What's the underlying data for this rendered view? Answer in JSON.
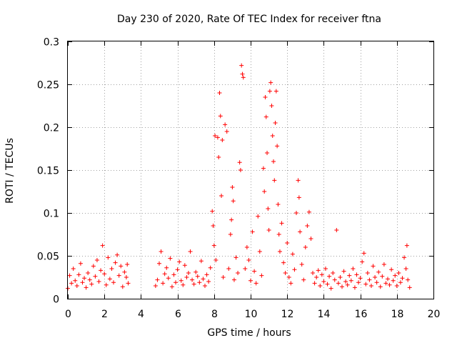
{
  "chart_data": {
    "type": "scatter",
    "title": "Day 230 of 2020, Rate Of TEC Index for receiver ftna",
    "xlabel": "GPS time / hours",
    "ylabel": "ROTI / TECUs",
    "xlim": [
      0,
      20
    ],
    "ylim": [
      0,
      0.3
    ],
    "xticks": [
      "0",
      "2",
      "4",
      "6",
      "8",
      "10",
      "12",
      "14",
      "16",
      "18",
      "20"
    ],
    "yticks": [
      "0",
      "0.05",
      "0.1",
      "0.15",
      "0.2",
      "0.25",
      "0.3"
    ],
    "grid": true,
    "marker": "+",
    "color": "#ff0000",
    "series": [
      {
        "name": "ROTI",
        "points": [
          [
            0.0,
            0.012
          ],
          [
            0.1,
            0.027
          ],
          [
            0.2,
            0.018
          ],
          [
            0.3,
            0.035
          ],
          [
            0.4,
            0.021
          ],
          [
            0.5,
            0.015
          ],
          [
            0.6,
            0.028
          ],
          [
            0.7,
            0.041
          ],
          [
            0.8,
            0.019
          ],
          [
            0.9,
            0.024
          ],
          [
            1.0,
            0.013
          ],
          [
            1.1,
            0.03
          ],
          [
            1.2,
            0.022
          ],
          [
            1.3,
            0.017
          ],
          [
            1.4,
            0.038
          ],
          [
            1.5,
            0.026
          ],
          [
            1.6,
            0.045
          ],
          [
            1.7,
            0.02
          ],
          [
            1.8,
            0.033
          ],
          [
            1.9,
            0.062
          ],
          [
            2.0,
            0.029
          ],
          [
            2.1,
            0.016
          ],
          [
            2.2,
            0.048
          ],
          [
            2.3,
            0.023
          ],
          [
            2.4,
            0.035
          ],
          [
            2.5,
            0.019
          ],
          [
            2.6,
            0.042
          ],
          [
            2.7,
            0.051
          ],
          [
            2.8,
            0.027
          ],
          [
            2.9,
            0.038
          ],
          [
            3.0,
            0.014
          ],
          [
            3.1,
            0.031
          ],
          [
            3.2,
            0.025
          ],
          [
            3.3,
            0.018
          ],
          [
            3.25,
            0.04
          ],
          [
            4.8,
            0.015
          ],
          [
            4.9,
            0.022
          ],
          [
            5.0,
            0.041
          ],
          [
            5.1,
            0.055
          ],
          [
            5.2,
            0.018
          ],
          [
            5.3,
            0.029
          ],
          [
            5.4,
            0.036
          ],
          [
            5.5,
            0.024
          ],
          [
            5.6,
            0.047
          ],
          [
            5.7,
            0.014
          ],
          [
            5.8,
            0.028
          ],
          [
            5.9,
            0.019
          ],
          [
            6.0,
            0.034
          ],
          [
            6.1,
            0.043
          ],
          [
            6.2,
            0.021
          ],
          [
            6.3,
            0.016
          ],
          [
            6.4,
            0.039
          ],
          [
            6.5,
            0.025
          ],
          [
            6.6,
            0.03
          ],
          [
            6.7,
            0.055
          ],
          [
            6.8,
            0.022
          ],
          [
            6.9,
            0.017
          ],
          [
            7.0,
            0.031
          ],
          [
            7.1,
            0.026
          ],
          [
            7.2,
            0.019
          ],
          [
            7.3,
            0.044
          ],
          [
            7.4,
            0.023
          ],
          [
            7.5,
            0.015
          ],
          [
            7.6,
            0.028
          ],
          [
            7.7,
            0.02
          ],
          [
            7.8,
            0.036
          ],
          [
            7.9,
            0.102
          ],
          [
            7.95,
            0.085
          ],
          [
            8.0,
            0.062
          ],
          [
            8.05,
            0.19
          ],
          [
            8.1,
            0.045
          ],
          [
            8.2,
            0.188
          ],
          [
            8.25,
            0.165
          ],
          [
            8.3,
            0.24
          ],
          [
            8.35,
            0.213
          ],
          [
            8.4,
            0.12
          ],
          [
            8.45,
            0.185
          ],
          [
            8.5,
            0.025
          ],
          [
            8.6,
            0.203
          ],
          [
            8.7,
            0.195
          ],
          [
            8.8,
            0.035
          ],
          [
            8.9,
            0.075
          ],
          [
            8.95,
            0.092
          ],
          [
            9.0,
            0.13
          ],
          [
            9.05,
            0.114
          ],
          [
            9.1,
            0.022
          ],
          [
            9.2,
            0.048
          ],
          [
            9.3,
            0.03
          ],
          [
            9.4,
            0.159
          ],
          [
            9.45,
            0.15
          ],
          [
            9.5,
            0.272
          ],
          [
            9.55,
            0.262
          ],
          [
            9.6,
            0.258
          ],
          [
            9.7,
            0.035
          ],
          [
            9.8,
            0.06
          ],
          [
            9.9,
            0.045
          ],
          [
            10.0,
            0.021
          ],
          [
            10.1,
            0.078
          ],
          [
            10.2,
            0.032
          ],
          [
            10.3,
            0.018
          ],
          [
            10.4,
            0.096
          ],
          [
            10.5,
            0.055
          ],
          [
            10.6,
            0.027
          ],
          [
            10.7,
            0.152
          ],
          [
            10.75,
            0.125
          ],
          [
            10.8,
            0.235
          ],
          [
            10.85,
            0.212
          ],
          [
            10.9,
            0.17
          ],
          [
            10.95,
            0.105
          ],
          [
            11.0,
            0.08
          ],
          [
            11.05,
            0.242
          ],
          [
            11.1,
            0.252
          ],
          [
            11.15,
            0.225
          ],
          [
            11.2,
            0.19
          ],
          [
            11.25,
            0.16
          ],
          [
            11.3,
            0.138
          ],
          [
            11.35,
            0.205
          ],
          [
            11.4,
            0.242
          ],
          [
            11.45,
            0.178
          ],
          [
            11.5,
            0.11
          ],
          [
            11.55,
            0.075
          ],
          [
            11.6,
            0.055
          ],
          [
            11.7,
            0.088
          ],
          [
            11.8,
            0.042
          ],
          [
            11.9,
            0.03
          ],
          [
            12.0,
            0.065
          ],
          [
            12.1,
            0.025
          ],
          [
            12.2,
            0.018
          ],
          [
            12.3,
            0.052
          ],
          [
            12.4,
            0.034
          ],
          [
            12.5,
            0.1
          ],
          [
            12.6,
            0.138
          ],
          [
            12.65,
            0.118
          ],
          [
            12.7,
            0.078
          ],
          [
            12.8,
            0.04
          ],
          [
            12.9,
            0.022
          ],
          [
            13.0,
            0.06
          ],
          [
            13.1,
            0.085
          ],
          [
            13.2,
            0.101
          ],
          [
            13.3,
            0.07
          ],
          [
            13.4,
            0.03
          ],
          [
            13.5,
            0.018
          ],
          [
            13.6,
            0.025
          ],
          [
            13.7,
            0.033
          ],
          [
            13.8,
            0.015
          ],
          [
            13.9,
            0.028
          ],
          [
            14.0,
            0.02
          ],
          [
            14.1,
            0.035
          ],
          [
            14.2,
            0.017
          ],
          [
            14.3,
            0.026
          ],
          [
            14.4,
            0.012
          ],
          [
            14.5,
            0.03
          ],
          [
            14.6,
            0.022
          ],
          [
            14.7,
            0.08
          ],
          [
            14.8,
            0.018
          ],
          [
            14.9,
            0.025
          ],
          [
            15.0,
            0.014
          ],
          [
            15.1,
            0.032
          ],
          [
            15.2,
            0.02
          ],
          [
            15.3,
            0.016
          ],
          [
            15.4,
            0.027
          ],
          [
            15.5,
            0.021
          ],
          [
            15.6,
            0.035
          ],
          [
            15.7,
            0.013
          ],
          [
            15.8,
            0.028
          ],
          [
            15.9,
            0.019
          ],
          [
            16.0,
            0.024
          ],
          [
            16.1,
            0.043
          ],
          [
            16.2,
            0.053
          ],
          [
            16.3,
            0.017
          ],
          [
            16.4,
            0.03
          ],
          [
            16.5,
            0.022
          ],
          [
            16.6,
            0.015
          ],
          [
            16.7,
            0.038
          ],
          [
            16.8,
            0.025
          ],
          [
            16.9,
            0.019
          ],
          [
            17.0,
            0.031
          ],
          [
            17.1,
            0.014
          ],
          [
            17.2,
            0.026
          ],
          [
            17.3,
            0.04
          ],
          [
            17.4,
            0.018
          ],
          [
            17.5,
            0.023
          ],
          [
            17.6,
            0.016
          ],
          [
            17.7,
            0.034
          ],
          [
            17.8,
            0.021
          ],
          [
            17.9,
            0.027
          ],
          [
            18.0,
            0.015
          ],
          [
            18.1,
            0.03
          ],
          [
            18.2,
            0.019
          ],
          [
            18.3,
            0.024
          ],
          [
            18.4,
            0.048
          ],
          [
            18.5,
            0.035
          ],
          [
            18.55,
            0.062
          ],
          [
            18.6,
            0.022
          ],
          [
            18.7,
            0.013
          ]
        ]
      }
    ]
  }
}
